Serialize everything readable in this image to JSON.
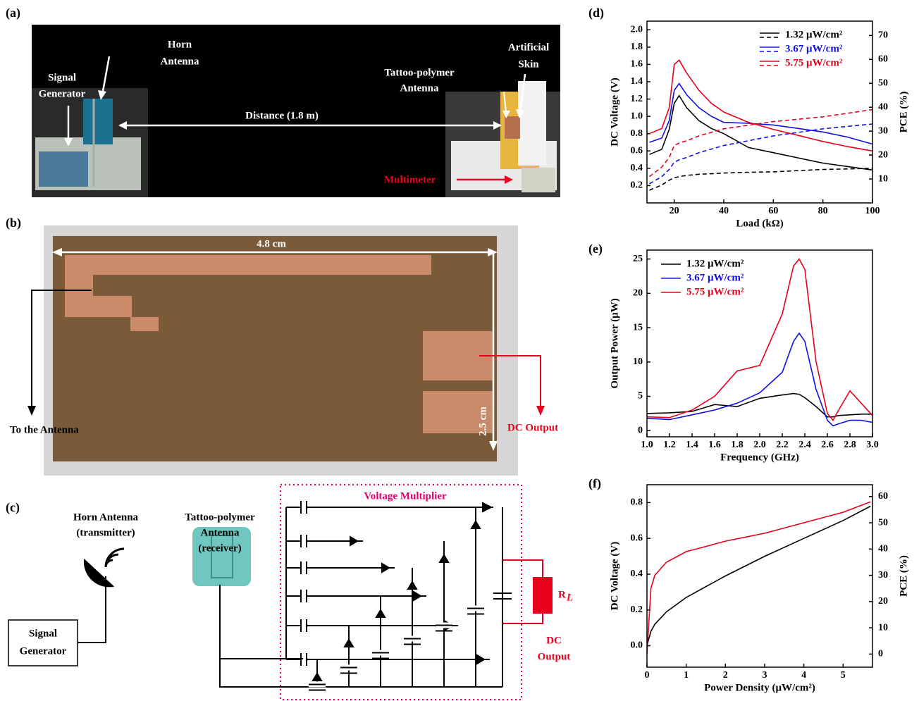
{
  "panel_labels": [
    "(a)",
    "(b)",
    "(c)",
    "(d)",
    "(e)",
    "(f)"
  ],
  "photo_a": {
    "horn_antenna": [
      "Horn",
      "Antenna"
    ],
    "signal_generator": [
      "Signal",
      "Generator"
    ],
    "distance": "Distance (1.8 m)",
    "tattoo_antenna": [
      "Tattoo-polymer",
      "Antenna"
    ],
    "artificial_skin": [
      "Artificial",
      "Skin"
    ],
    "multimeter": "Multimeter"
  },
  "photo_b": {
    "width": "4.8 cm",
    "height": "2.5 cm",
    "to_antenna": "To the Antenna",
    "dc_output": "DC Output"
  },
  "schematic_c": {
    "horn_antenna": [
      "Horn Antenna",
      "(transmitter)"
    ],
    "signal_generator": [
      "Signal",
      "Generator"
    ],
    "tattoo_antenna": [
      "Tattoo-polymer",
      "Antenna",
      "(receiver)"
    ],
    "voltage_multiplier": "Voltage Multiplier",
    "load": {
      "r": "R",
      "l": "L"
    },
    "dc_output": [
      "DC",
      "Output"
    ]
  },
  "chart_data": [
    {
      "type": "line",
      "xlabel": "Load (kΩ)",
      "ylabel": "DC Voltage (V)",
      "y2label": "PCE (%)",
      "x": [
        10,
        15,
        18,
        20,
        22,
        25,
        30,
        35,
        40,
        50,
        60,
        70,
        80,
        90,
        100
      ],
      "xlim": [
        9,
        100
      ],
      "xticks": [
        20,
        40,
        60,
        80,
        100
      ],
      "ylim": [
        0,
        2.1
      ],
      "yticks": [
        0.2,
        0.4,
        0.6,
        0.8,
        {
          "value": 1,
          "label": "1.0"
        },
        1.2,
        1.4,
        1.6,
        1.8,
        {
          "value": 2,
          "label": "2.0"
        }
      ],
      "y2lim": [
        0,
        76
      ],
      "y2ticks": [
        10,
        20,
        30,
        40,
        50,
        60,
        70
      ],
      "y2_dash": true,
      "legend": "upper right",
      "series": [
        {
          "name": "1.32 μW/cm²",
          "color": "#000000",
          "values": [
            0.56,
            0.62,
            0.85,
            1.15,
            1.24,
            1.1,
            0.95,
            0.86,
            0.8,
            0.64,
            0.58,
            0.52,
            0.46,
            0.42,
            0.38
          ],
          "y2_values": [
            5.3,
            7.5,
            9.5,
            10.5,
            11,
            11.5,
            12,
            12.2,
            12.5,
            12.8,
            13,
            13.5,
            14,
            14.2,
            14.5
          ]
        },
        {
          "name": "3.67 μW/cm²",
          "color": "#1010e0",
          "values": [
            0.7,
            0.75,
            0.95,
            1.3,
            1.38,
            1.25,
            1.1,
            1.0,
            0.93,
            0.92,
            0.9,
            0.86,
            0.82,
            0.76,
            0.68
          ],
          "y2_values": [
            8,
            11,
            14,
            17,
            18,
            19,
            21,
            22.5,
            24,
            26,
            28,
            29.5,
            31,
            32,
            33
          ]
        },
        {
          "name": "5.75 μW/cm²",
          "color": "#e8001c",
          "values": [
            0.8,
            0.86,
            1.1,
            1.6,
            1.65,
            1.5,
            1.3,
            1.15,
            1.05,
            0.93,
            0.85,
            0.78,
            0.71,
            0.65,
            0.6
          ],
          "y2_values": [
            11,
            15,
            19,
            24,
            25,
            26,
            28,
            29.5,
            31,
            32.5,
            34,
            35,
            36,
            37.5,
            39
          ]
        }
      ]
    },
    {
      "type": "line",
      "xlabel": "Frequency (GHz)",
      "ylabel": "Output Power (μW)",
      "x": [
        1.0,
        1.2,
        1.4,
        1.6,
        1.8,
        2.0,
        2.2,
        2.3,
        2.35,
        2.4,
        2.5,
        2.6,
        2.65,
        2.7,
        2.8,
        2.9,
        3.0
      ],
      "xlim": [
        1,
        3
      ],
      "xticks": [
        {
          "value": 1,
          "label": "1.0"
        },
        1.2,
        1.4,
        1.6,
        1.8,
        {
          "value": 2,
          "label": "2.0"
        },
        2.2,
        2.4,
        2.6,
        2.8,
        {
          "value": 3,
          "label": "3.0"
        }
      ],
      "ylim": [
        -0.9,
        26.3
      ],
      "yticks": [
        0,
        5,
        10,
        15,
        20,
        25
      ],
      "legend": "upper left",
      "series": [
        {
          "name": "1.32 μW/cm²",
          "color": "#000000",
          "values": [
            2.5,
            2.6,
            2.8,
            3.8,
            3.5,
            4.7,
            5.2,
            5.4,
            5.3,
            4.8,
            3.5,
            2,
            2,
            2.2,
            2.3,
            2.4,
            2.4
          ]
        },
        {
          "name": "3.67 μW/cm²",
          "color": "#1010e0",
          "values": [
            1.8,
            1.6,
            2.3,
            3,
            4,
            5.5,
            8.5,
            13,
            14.2,
            13,
            6,
            1.5,
            0.7,
            1,
            1.5,
            1.5,
            1.2
          ]
        },
        {
          "name": "5.75 μW/cm²",
          "color": "#e8001c",
          "values": [
            2,
            1.9,
            3,
            5,
            8.7,
            9.5,
            17,
            24,
            25,
            23.5,
            10,
            2.5,
            1.5,
            3,
            5.8,
            4,
            2.2
          ]
        }
      ]
    },
    {
      "type": "line",
      "xlabel": "Power Density (μW/cm²)",
      "ylabel": "DC Voltage (V)",
      "y2label": "PCE (%)",
      "x": [
        0,
        0.1,
        0.2,
        0.5,
        1,
        1.5,
        2,
        3,
        4,
        5,
        5.7
      ],
      "xlim": [
        0,
        5.75
      ],
      "xticks": [
        0,
        1,
        2,
        3,
        4,
        5
      ],
      "ylim": [
        -0.12,
        0.9
      ],
      "yticks": [
        {
          "value": 0,
          "label": "0.0"
        },
        0.2,
        0.4,
        0.6,
        0.8
      ],
      "y2lim": [
        -5,
        64.5
      ],
      "y2ticks": [
        0,
        10,
        20,
        30,
        40,
        50,
        60
      ],
      "series": [
        {
          "color": "#000000",
          "values": [
            0,
            0.08,
            0.12,
            0.19,
            0.27,
            0.33,
            0.39,
            0.5,
            0.6,
            0.7,
            0.78
          ]
        },
        {
          "color": "#e8001c",
          "axis": "y2",
          "values": [
            0,
            25,
            30,
            35,
            39,
            41,
            43,
            46,
            50,
            54,
            58
          ]
        }
      ]
    }
  ]
}
